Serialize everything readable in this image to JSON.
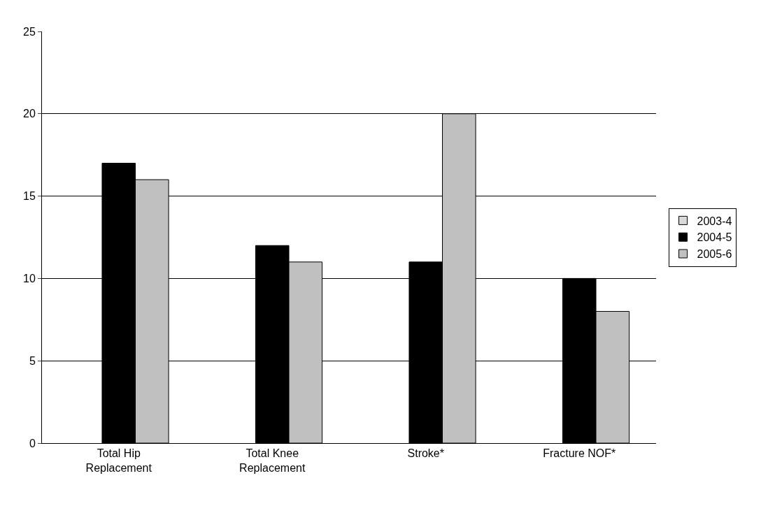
{
  "chart_data": {
    "type": "bar",
    "categories": [
      "Total Hip Replacement",
      "Total Knee Replacement",
      "Stroke*",
      "Fracture NOF*"
    ],
    "series": [
      {
        "name": "2003-4",
        "color": "#d9d9d9",
        "values": [
          null,
          null,
          null,
          null
        ]
      },
      {
        "name": "2004-5",
        "color": "#000000",
        "values": [
          17,
          12,
          11,
          10
        ]
      },
      {
        "name": "2005-6",
        "color": "#c0c0c0",
        "values": [
          16,
          11,
          20,
          8
        ]
      }
    ],
    "ylim": [
      0,
      25
    ],
    "yticks": [
      0,
      5,
      10,
      15,
      20,
      25
    ],
    "grid": "y",
    "legend": "right"
  }
}
